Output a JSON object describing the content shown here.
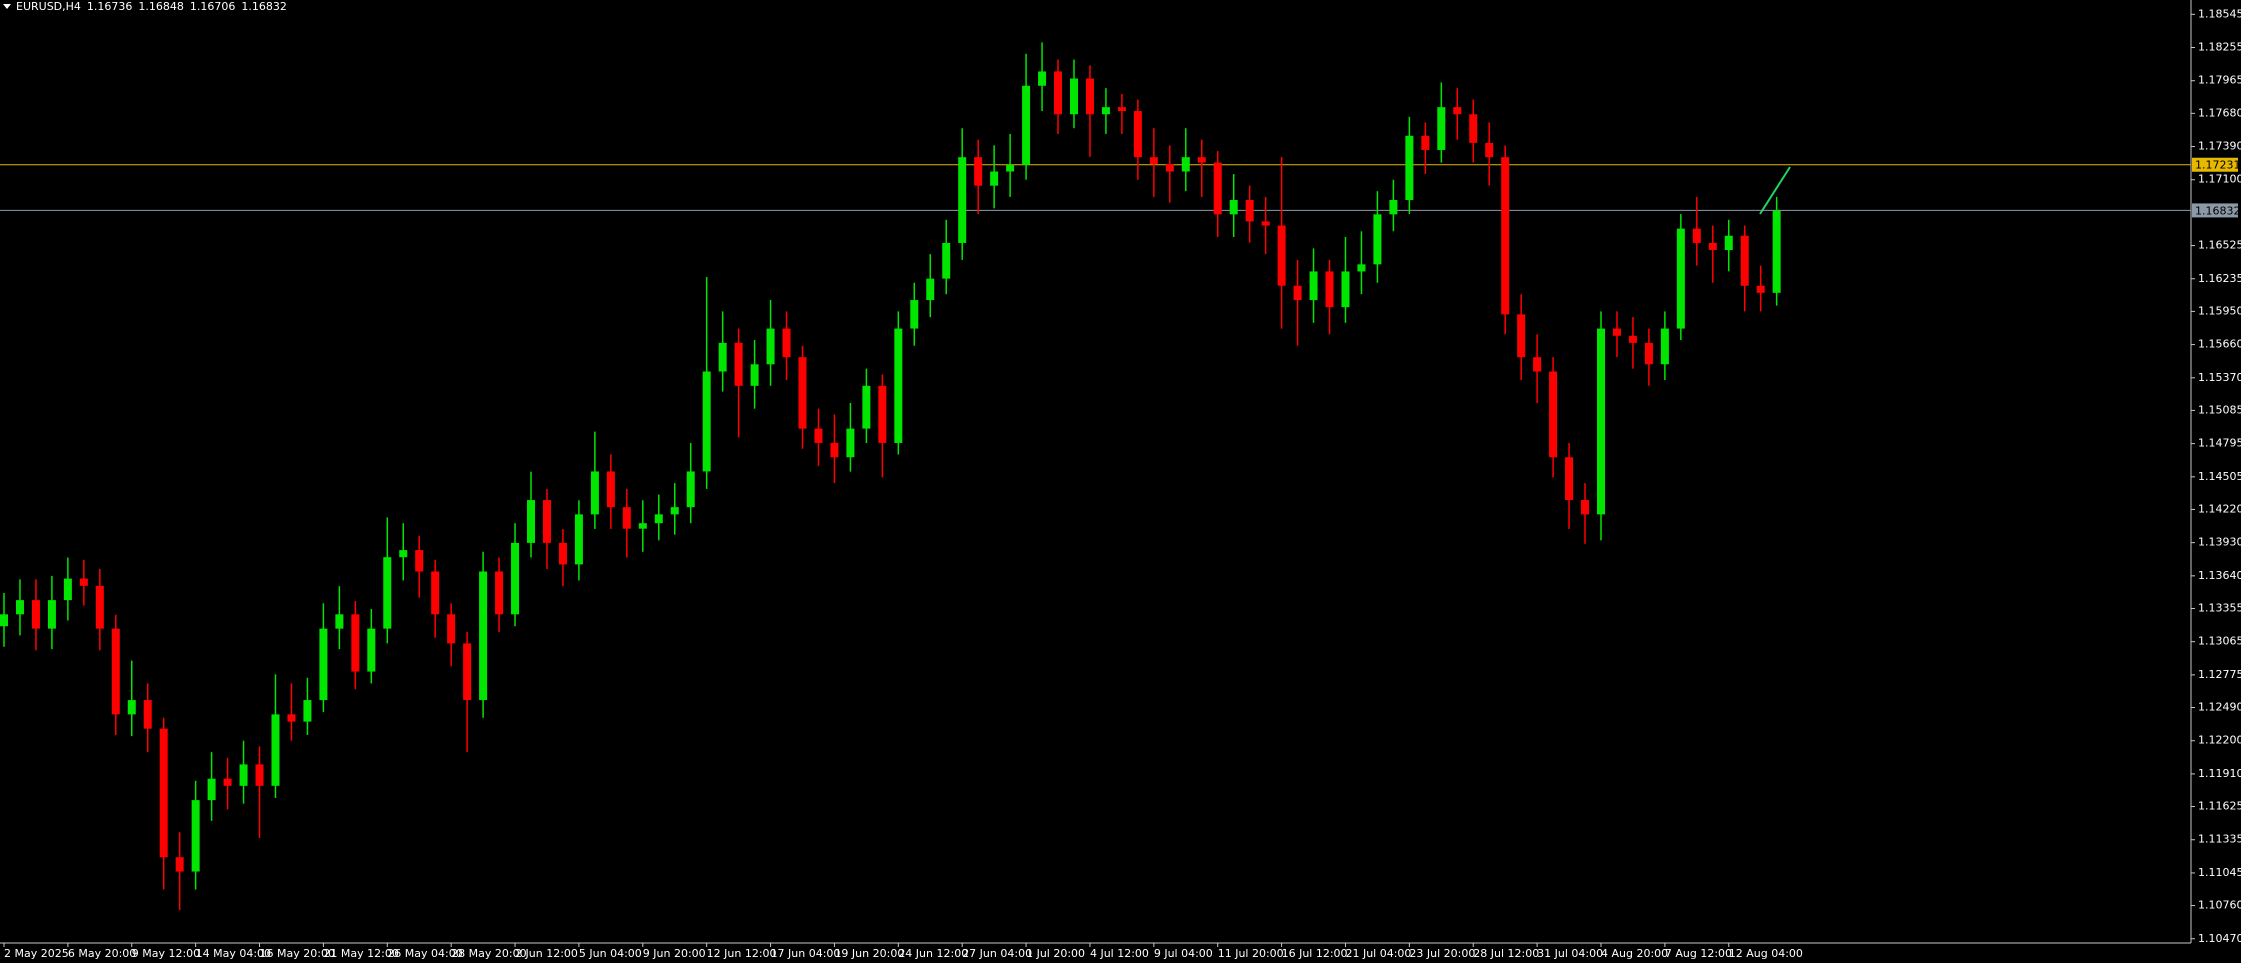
{
  "chart_data": {
    "type": "candlestick",
    "title": "EURUSD,H4",
    "header_values": [
      1.16736,
      1.16848,
      1.16706,
      1.16832
    ],
    "up_color": "#00e600",
    "down_color": "#ff0000",
    "categories": [
      "2 May 2025",
      null,
      null,
      null,
      "6 May 20:00",
      null,
      null,
      null,
      "9 May 12:00",
      null,
      null,
      null,
      "14 May 04:00",
      null,
      null,
      null,
      "16 May 20:00",
      null,
      null,
      null,
      "21 May 12:00",
      null,
      null,
      null,
      "26 May 04:00",
      null,
      null,
      null,
      "28 May 20:00",
      null,
      null,
      null,
      "2 Jun 12:00",
      null,
      null,
      null,
      "5 Jun 04:00",
      null,
      null,
      null,
      "9 Jun 20:00",
      null,
      null,
      null,
      "12 Jun 12:00",
      null,
      null,
      null,
      "17 Jun 04:00",
      null,
      null,
      null,
      "19 Jun 20:00",
      null,
      null,
      null,
      "24 Jun 12:00",
      null,
      null,
      null,
      "27 Jun 04:00",
      null,
      null,
      null,
      "1 Jul 20:00",
      null,
      null,
      null,
      "4 Jul 12:00",
      null,
      null,
      null,
      "9 Jul 04:00",
      null,
      null,
      null,
      "11 Jul 20:00",
      null,
      null,
      null,
      "16 Jul 12:00",
      null,
      null,
      null,
      "21 Jul 04:00",
      null,
      null,
      null,
      "23 Jul 20:00",
      null,
      null,
      null,
      "28 Jul 12:00",
      null,
      null,
      null,
      "31 Jul 04:00",
      null,
      null,
      null,
      "4 Aug 20:00",
      null,
      null,
      null,
      "7 Aug 12:00",
      null,
      null,
      null,
      "12 Aug 04:00",
      null,
      null,
      null
    ],
    "open": [
      1.132,
      1.13304,
      1.13428,
      1.13179,
      1.13428,
      1.13616,
      1.13553,
      1.13179,
      1.1243,
      1.12555,
      1.12305,
      1.11182,
      1.11057,
      1.11681,
      1.11868,
      1.11806,
      1.11993,
      1.11806,
      1.1243,
      1.12367,
      1.12555,
      1.13179,
      1.13304,
      1.12804,
      1.13179,
      1.13803,
      1.13865,
      1.13678,
      1.13304,
      1.1305,
      1.12555,
      1.13678,
      1.13304,
      1.13928,
      1.14302,
      1.13928,
      1.1374,
      1.14177,
      1.14552,
      1.1424,
      1.14052,
      1.141,
      1.14177,
      1.1424,
      1.14552,
      1.15425,
      1.15675,
      1.153,
      1.15488,
      1.158,
      1.1555,
      1.14926,
      1.14801,
      1.14676,
      1.14926,
      1.153,
      1.14801,
      1.158,
      1.16049,
      1.16236,
      1.16548,
      1.17297,
      1.17048,
      1.17172,
      1.1723,
      1.17921,
      1.18046,
      1.17672,
      1.17984,
      1.17672,
      1.17734,
      1.177,
      1.17297,
      1.17235,
      1.17172,
      1.17297,
      1.1725,
      1.16798,
      1.16923,
      1.16736,
      1.167,
      1.16174,
      1.16049,
      1.16299,
      1.15987,
      1.16299,
      1.16361,
      1.16798,
      1.16923,
      1.17484,
      1.1736,
      1.17734,
      1.17672,
      1.17422,
      1.17297,
      1.15924,
      1.1555,
      1.15425,
      1.14676,
      1.14302,
      1.14177,
      1.158,
      1.15737,
      1.15675,
      1.15488,
      1.158,
      1.16673,
      1.16548,
      1.16486,
      1.16611,
      1.16174,
      1.16112
    ],
    "high": [
      1.1349,
      1.1361,
      1.1361,
      1.1364,
      1.138,
      1.1378,
      1.137,
      1.133,
      1.129,
      1.127,
      1.124,
      1.114,
      1.1185,
      1.121,
      1.1205,
      1.122,
      1.1215,
      1.1278,
      1.127,
      1.1275,
      1.134,
      1.1355,
      1.1342,
      1.1335,
      1.1415,
      1.141,
      1.1399,
      1.1378,
      1.134,
      1.1315,
      1.1385,
      1.138,
      1.141,
      1.1455,
      1.144,
      1.1405,
      1.143,
      1.149,
      1.147,
      1.144,
      1.143,
      1.1435,
      1.1445,
      1.148,
      1.1625,
      1.1595,
      1.158,
      1.157,
      1.1605,
      1.1595,
      1.1565,
      1.151,
      1.1505,
      1.1515,
      1.1545,
      1.154,
      1.1595,
      1.162,
      1.1645,
      1.1675,
      1.1755,
      1.1745,
      1.174,
      1.175,
      1.182,
      1.183,
      1.1815,
      1.1815,
      1.181,
      1.179,
      1.1785,
      1.178,
      1.1755,
      1.174,
      1.1755,
      1.1745,
      1.1735,
      1.1715,
      1.1705,
      1.1695,
      1.173,
      1.164,
      1.165,
      1.164,
      1.166,
      1.1665,
      1.17,
      1.171,
      1.1765,
      1.176,
      1.1795,
      1.179,
      1.178,
      1.176,
      1.174,
      1.161,
      1.1575,
      1.1555,
      1.148,
      1.1445,
      1.1595,
      1.1595,
      1.159,
      1.158,
      1.1595,
      1.168,
      1.1695,
      1.167,
      1.1675,
      1.167,
      1.1635,
      1.1695
    ],
    "low": [
      1.1302,
      1.1312,
      1.1299,
      1.13,
      1.1325,
      1.1338,
      1.1299,
      1.1225,
      1.1224,
      1.121,
      1.109,
      1.1072,
      1.109,
      1.115,
      1.116,
      1.1165,
      1.1135,
      1.117,
      1.122,
      1.1225,
      1.1245,
      1.13,
      1.1265,
      1.127,
      1.1305,
      1.136,
      1.1345,
      1.131,
      1.1285,
      1.121,
      1.124,
      1.1315,
      1.132,
      1.138,
      1.137,
      1.1355,
      1.136,
      1.1405,
      1.1405,
      1.138,
      1.1385,
      1.1395,
      1.14,
      1.141,
      1.144,
      1.1525,
      1.1485,
      1.151,
      1.153,
      1.1535,
      1.1475,
      1.146,
      1.1445,
      1.1455,
      1.148,
      1.145,
      1.147,
      1.1565,
      1.159,
      1.161,
      1.164,
      1.168,
      1.1685,
      1.1695,
      1.171,
      1.177,
      1.175,
      1.1755,
      1.173,
      1.175,
      1.175,
      1.171,
      1.1695,
      1.169,
      1.17,
      1.1695,
      1.166,
      1.166,
      1.1655,
      1.1645,
      1.158,
      1.1565,
      1.1585,
      1.1575,
      1.1585,
      1.161,
      1.162,
      1.1665,
      1.168,
      1.1715,
      1.1725,
      1.1745,
      1.1725,
      1.1705,
      1.1575,
      1.1535,
      1.1515,
      1.145,
      1.1405,
      1.1392,
      1.1395,
      1.1555,
      1.1545,
      1.153,
      1.1535,
      1.157,
      1.1635,
      1.162,
      1.163,
      1.1595,
      1.1595,
      1.16
    ],
    "close": [
      1.13304,
      1.13428,
      1.13179,
      1.13428,
      1.13616,
      1.13553,
      1.13179,
      1.1243,
      1.12555,
      1.12305,
      1.11182,
      1.11057,
      1.11681,
      1.11868,
      1.11806,
      1.11993,
      1.11806,
      1.1243,
      1.12367,
      1.12555,
      1.13179,
      1.13304,
      1.12804,
      1.13179,
      1.13803,
      1.13865,
      1.13678,
      1.13304,
      1.1305,
      1.12555,
      1.13678,
      1.13304,
      1.13928,
      1.14302,
      1.13928,
      1.1374,
      1.14177,
      1.14552,
      1.1424,
      1.14052,
      1.141,
      1.14177,
      1.1424,
      1.14552,
      1.15425,
      1.15675,
      1.153,
      1.15488,
      1.158,
      1.1555,
      1.14926,
      1.14801,
      1.14676,
      1.14926,
      1.153,
      1.14801,
      1.158,
      1.16049,
      1.16236,
      1.16548,
      1.17297,
      1.17048,
      1.17172,
      1.1723,
      1.17921,
      1.18046,
      1.17672,
      1.17984,
      1.17672,
      1.17734,
      1.177,
      1.17297,
      1.17235,
      1.17172,
      1.17297,
      1.1725,
      1.16798,
      1.16923,
      1.16736,
      1.167,
      1.16174,
      1.16049,
      1.16299,
      1.15987,
      1.16299,
      1.16361,
      1.16798,
      1.16923,
      1.17484,
      1.1736,
      1.17734,
      1.17672,
      1.17422,
      1.17297,
      1.15924,
      1.1555,
      1.15425,
      1.14676,
      1.14302,
      1.14177,
      1.158,
      1.15737,
      1.15675,
      1.15488,
      1.158,
      1.16673,
      1.16548,
      1.16486,
      1.16611,
      1.16174,
      1.16112,
      1.16832
    ],
    "ylim": [
      1.10433,
      1.1867
    ],
    "yticks": [
      1.18545,
      1.18255,
      1.17965,
      {
        "value": 1.1768,
        "label": "1.17680"
      },
      {
        "value": 1.1739,
        "label": "1.17390"
      },
      {
        "value": 1.171,
        "label": "1.17100"
      },
      1.16525,
      1.16235,
      {
        "value": 1.1595,
        "label": "1.15950"
      },
      {
        "value": 1.1566,
        "label": "1.15660"
      },
      {
        "value": 1.1537,
        "label": "1.15370"
      },
      1.15085,
      1.14795,
      1.14505,
      {
        "value": 1.1422,
        "label": "1.14220"
      },
      {
        "value": 1.1393,
        "label": "1.13930"
      },
      {
        "value": 1.1364,
        "label": "1.13640"
      },
      1.13355,
      1.13065,
      1.12775,
      {
        "value": 1.1249,
        "label": "1.12490"
      },
      {
        "value": 1.122,
        "label": "1.12200"
      },
      {
        "value": 1.1191,
        "label": "1.11910"
      },
      1.11625,
      1.11335,
      1.11045,
      {
        "value": 1.1076,
        "label": "1.10760"
      },
      {
        "value": 1.1047,
        "label": "1.10470"
      }
    ],
    "hlines": [
      {
        "value": 1.17231,
        "color": "#e6b800"
      },
      {
        "value": 1.16832,
        "color": "#8c9aa8"
      }
    ]
  }
}
